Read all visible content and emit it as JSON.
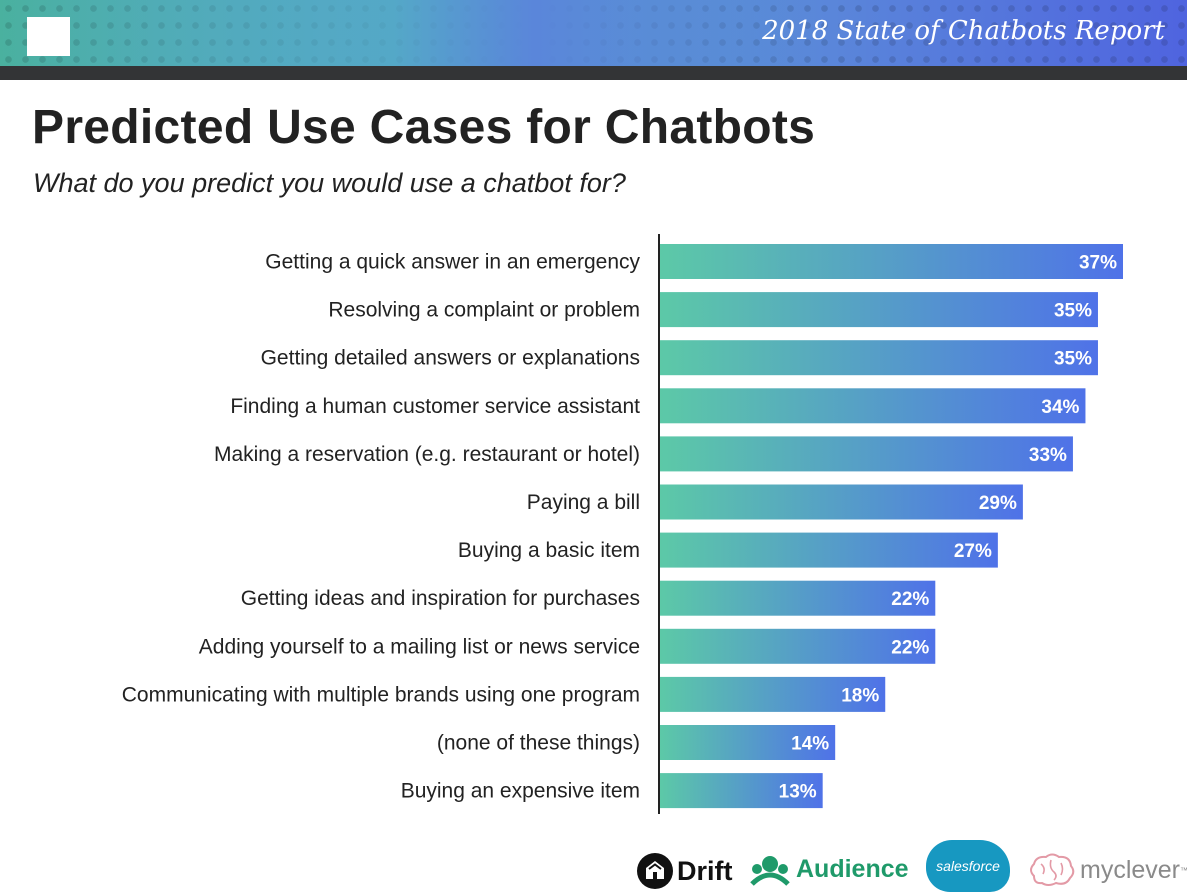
{
  "header": {
    "report_title": "2018 State of Chatbots Report"
  },
  "page": {
    "title": "Predicted Use Cases for Chatbots",
    "subtitle": "What do you predict you would use a chatbot for?"
  },
  "chart_data": {
    "type": "bar",
    "orientation": "horizontal",
    "title": "Predicted Use Cases for Chatbots",
    "subtitle": "What do you predict you would use a chatbot for?",
    "categories": [
      "Getting a quick answer in an emergency",
      "Resolving a complaint or problem",
      "Getting detailed answers or explanations",
      "Finding a human customer service assistant",
      "Making a reservation (e.g. restaurant or hotel)",
      "Paying a bill",
      "Buying a basic item",
      "Getting ideas and inspiration for purchases",
      "Adding yourself to a mailing list or news service",
      "Communicating with multiple brands using one program",
      "(none of these things)",
      "Buying an expensive item"
    ],
    "values": [
      37,
      35,
      35,
      34,
      33,
      29,
      27,
      22,
      22,
      18,
      14,
      13
    ],
    "value_labels": [
      "37%",
      "35%",
      "35%",
      "34%",
      "33%",
      "29%",
      "27%",
      "22%",
      "22%",
      "18%",
      "14%",
      "13%"
    ],
    "unit": "%",
    "xlim": [
      0,
      37
    ],
    "grid": false,
    "legend": "none",
    "colors": {
      "bar_start": "#5cc9a7",
      "bar_end": "#4f72e8",
      "axis": "#222222"
    }
  },
  "logos": {
    "drift": "Drift",
    "audience": "Audience",
    "salesforce": "salesforce",
    "myclever": "myclever",
    "myclever_tm": "™"
  }
}
